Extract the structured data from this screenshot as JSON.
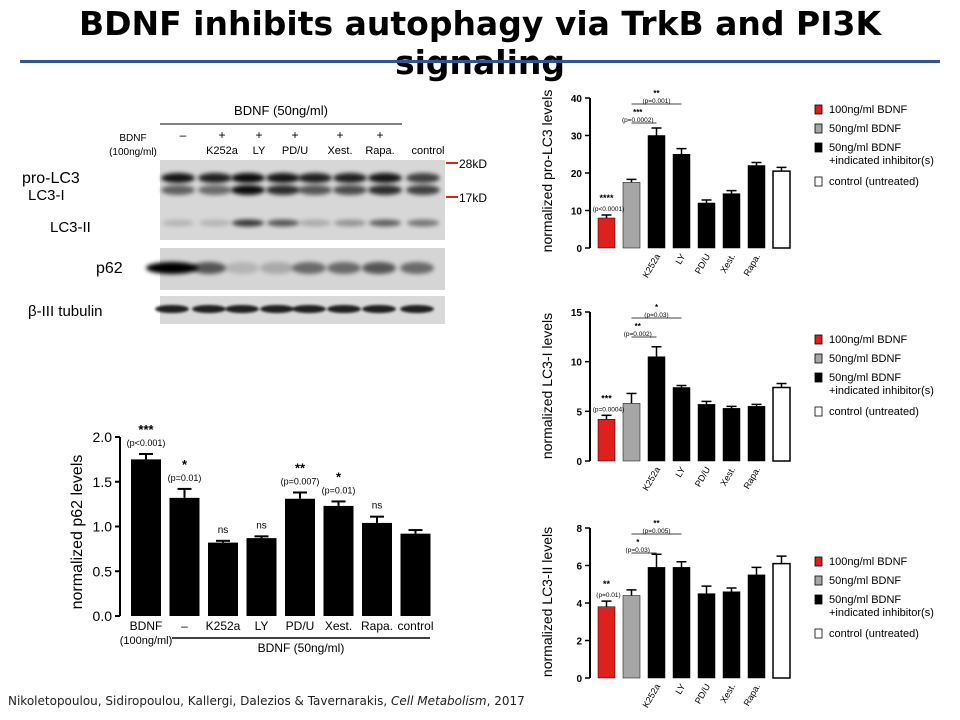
{
  "slide": {
    "title": "BDNF inhibits autophagy via TrkB and PI3K signaling",
    "citation_authors": "Nikoletopoulou,  Sidiropoulou,  Kallergi, Dalezios & Tavernarakis, ",
    "citation_journal": "Cell Metabolism",
    "citation_year": ", 2017",
    "accent_color": "#2f5597"
  },
  "western_blot": {
    "treatment_header": "BDNF (50ng/ml)",
    "lane_row_label": [
      "BDNF",
      "(100ng/ml)"
    ],
    "lane_signs": [
      "",
      "–",
      "+",
      "+",
      "+",
      "+",
      "+",
      ""
    ],
    "lane_names": [
      "",
      "",
      "K252a",
      "LY",
      "PD/U",
      "Xest.",
      "Rapa.",
      "control"
    ],
    "row_labels": {
      "pro_lc3": "pro-LC3",
      "lc3_i": "LC3-I",
      "lc3_ii": "LC3-II",
      "p62": "p62",
      "tubulin": "β-III tubulin"
    },
    "markers": [
      "28kD",
      "17kD"
    ],
    "marker_color": "#e0201c"
  },
  "chart_data": [
    {
      "type": "bar",
      "ylabel": "normalized p62 levels",
      "categories": [
        "BDNF",
        "–",
        "K252a",
        "LY",
        "PD/U",
        "Xest.",
        "Rapa.",
        "control"
      ],
      "category_sub": [
        "(100ng/ml)",
        "",
        "",
        "",
        "",
        "",
        "",
        ""
      ],
      "values": [
        1.75,
        1.32,
        0.82,
        0.87,
        1.31,
        1.23,
        1.04,
        0.92
      ],
      "errors": [
        0.06,
        0.1,
        0.02,
        0.02,
        0.07,
        0.05,
        0.07,
        0.04
      ],
      "colors": [
        "#000000",
        "#000000",
        "#000000",
        "#000000",
        "#000000",
        "#000000",
        "#000000",
        "#000000"
      ],
      "significance": [
        "***",
        "*",
        "ns",
        "ns",
        "**",
        "*",
        "ns",
        ""
      ],
      "pvalues": [
        "(p<0.001)",
        "(p=0.01)",
        "",
        "",
        "(p=0.007)",
        "(p=0.01)",
        "",
        ""
      ],
      "group_label": "BDNF (50ng/ml)",
      "ylim": [
        0,
        2.0
      ],
      "yticks": [
        "0.0",
        "0.5",
        "1.0",
        "1.5",
        "2.0"
      ]
    },
    {
      "type": "bar",
      "ylabel": "normalized pro-LC3 levels",
      "categories": [
        "",
        "",
        "K252a",
        "LY",
        "PD/U",
        "Xest.",
        "Rapa.",
        ""
      ],
      "values": [
        8.0,
        17.5,
        30.0,
        25.0,
        12.0,
        14.5,
        22.0,
        20.5
      ],
      "errors": [
        0.8,
        0.8,
        2.0,
        1.5,
        0.8,
        0.8,
        0.8,
        1.0
      ],
      "colors": [
        "#e0201c",
        "#a6a6a6",
        "#000000",
        "#000000",
        "#000000",
        "#000000",
        "#000000",
        "#ffffff"
      ],
      "first_bar_sig": "****",
      "first_bar_p": "(p<0.0001)",
      "brackets": [
        {
          "stars": "**",
          "p": "(p=0.001)",
          "from": 1,
          "to": 3
        },
        {
          "stars": "***",
          "p": "(p=0.0002)",
          "from": 1,
          "to": 2
        }
      ],
      "ylim": [
        0,
        40
      ],
      "yticks": [
        "0",
        "10",
        "20",
        "30",
        "40"
      ],
      "legend": [
        "100ng/ml BDNF",
        "50ng/ml BDNF",
        "50ng/ml BDNF",
        "+indicated inhibitor(s)",
        "control (untreated)"
      ]
    },
    {
      "type": "bar",
      "ylabel": "normalized LC3-I levels",
      "categories": [
        "",
        "",
        "K252a",
        "LY",
        "PD/U",
        "Xest.",
        "Rapa.",
        ""
      ],
      "values": [
        4.2,
        5.8,
        10.5,
        7.4,
        5.7,
        5.3,
        5.5,
        7.4
      ],
      "errors": [
        0.4,
        1.0,
        1.0,
        0.2,
        0.3,
        0.2,
        0.2,
        0.4
      ],
      "colors": [
        "#e0201c",
        "#a6a6a6",
        "#000000",
        "#000000",
        "#000000",
        "#000000",
        "#000000",
        "#ffffff"
      ],
      "first_bar_sig": "***",
      "first_bar_p": "(p=0.0004)",
      "brackets": [
        {
          "stars": "*",
          "p": "(p=0.03)",
          "from": 1,
          "to": 3
        },
        {
          "stars": "**",
          "p": "(p=0.002)",
          "from": 1,
          "to": 2
        }
      ],
      "ylim": [
        0,
        15
      ],
      "yticks": [
        "0",
        "5",
        "10",
        "15"
      ],
      "legend": [
        "100ng/ml BDNF",
        "50ng/ml BDNF",
        "50ng/ml BDNF",
        "+indicated inhibitor(s)",
        "control (untreated)"
      ]
    },
    {
      "type": "bar",
      "ylabel": "normalized LC3-II levels",
      "categories": [
        "",
        "",
        "K252a",
        "LY",
        "PD/U",
        "Xest.",
        "Rapa.",
        ""
      ],
      "values": [
        3.8,
        4.4,
        5.9,
        5.9,
        4.5,
        4.6,
        5.5,
        6.1
      ],
      "errors": [
        0.3,
        0.3,
        0.7,
        0.3,
        0.4,
        0.2,
        0.4,
        0.4
      ],
      "colors": [
        "#e0201c",
        "#a6a6a6",
        "#000000",
        "#000000",
        "#000000",
        "#000000",
        "#000000",
        "#ffffff"
      ],
      "first_bar_sig": "**",
      "first_bar_p": "(p=0.01)",
      "brackets": [
        {
          "stars": "**",
          "p": "(p=0.005)",
          "from": 1,
          "to": 3
        },
        {
          "stars": "*",
          "p": "(p=0.03)",
          "from": 1,
          "to": 2
        }
      ],
      "ylim": [
        0,
        8
      ],
      "yticks": [
        "0",
        "2",
        "4",
        "6",
        "8"
      ],
      "legend": [
        "100ng/ml BDNF",
        "50ng/ml BDNF",
        "50ng/ml BDNF",
        "+indicated inhibitor(s)",
        "control (untreated)"
      ]
    }
  ]
}
